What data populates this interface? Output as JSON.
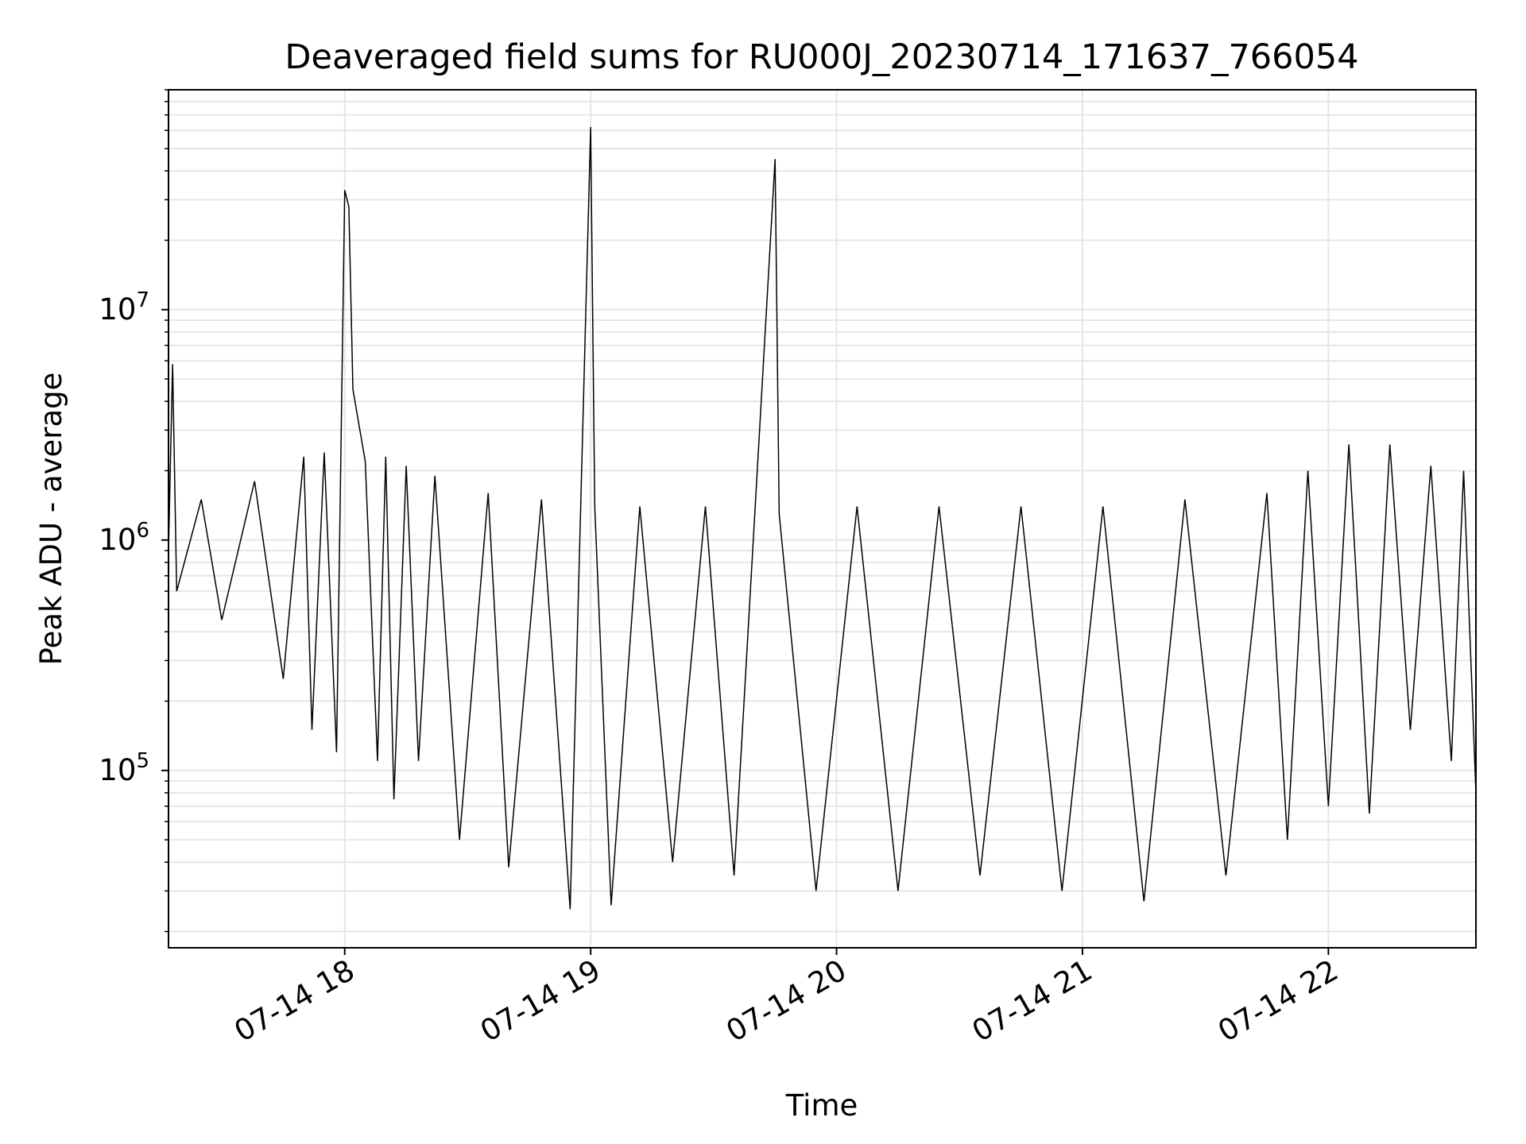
{
  "chart_data": {
    "type": "line",
    "title": "Deaveraged field sums for RU000J_20230714_171637_766054",
    "xlabel": "Time",
    "ylabel": "Peak ADU - average",
    "y_scale": "log",
    "ylim": [
      17000,
      90000000
    ],
    "xlim": [
      "2023-07-14 17:17",
      "2023-07-14 22:36"
    ],
    "x_ticks": [
      "2023-07-14 18:00",
      "2023-07-14 19:00",
      "2023-07-14 20:00",
      "2023-07-14 21:00",
      "2023-07-14 22:00"
    ],
    "x_tick_labels": [
      "07-14 18",
      "07-14 19",
      "07-14 20",
      "07-14 21",
      "07-14 22"
    ],
    "y_tick_labels": [
      {
        "value": 100000,
        "base": "10",
        "exponent": "5"
      },
      {
        "value": 1000000,
        "base": "10",
        "exponent": "6"
      },
      {
        "value": 10000000,
        "base": "10",
        "exponent": "7"
      }
    ],
    "grid": true,
    "line_color": "#000000",
    "grid_color": "#e6e6e6",
    "series": [
      {
        "points": [
          [
            "2023-07-14 17:17",
            900000
          ],
          [
            "2023-07-14 17:18",
            5800000
          ],
          [
            "2023-07-14 17:19",
            600000
          ],
          [
            "2023-07-14 17:25",
            1500000
          ],
          [
            "2023-07-14 17:30",
            450000
          ],
          [
            "2023-07-14 17:38",
            1800000
          ],
          [
            "2023-07-14 17:45",
            250000
          ],
          [
            "2023-07-14 17:50",
            2300000
          ],
          [
            "2023-07-14 17:52",
            150000
          ],
          [
            "2023-07-14 17:55",
            2400000
          ],
          [
            "2023-07-14 17:58",
            120000
          ],
          [
            "2023-07-14 18:00",
            33000000
          ],
          [
            "2023-07-14 18:01",
            28000000
          ],
          [
            "2023-07-14 18:02",
            4500000
          ],
          [
            "2023-07-14 18:05",
            2200000
          ],
          [
            "2023-07-14 18:08",
            110000
          ],
          [
            "2023-07-14 18:10",
            2300000
          ],
          [
            "2023-07-14 18:12",
            75000
          ],
          [
            "2023-07-14 18:15",
            2100000
          ],
          [
            "2023-07-14 18:18",
            110000
          ],
          [
            "2023-07-14 18:22",
            1900000
          ],
          [
            "2023-07-14 18:28",
            50000
          ],
          [
            "2023-07-14 18:35",
            1600000
          ],
          [
            "2023-07-14 18:40",
            38000
          ],
          [
            "2023-07-14 18:48",
            1500000
          ],
          [
            "2023-07-14 18:55",
            25000
          ],
          [
            "2023-07-14 19:00",
            62000000
          ],
          [
            "2023-07-14 19:01",
            1400000
          ],
          [
            "2023-07-14 19:05",
            26000
          ],
          [
            "2023-07-14 19:12",
            1400000
          ],
          [
            "2023-07-14 19:20",
            40000
          ],
          [
            "2023-07-14 19:28",
            1400000
          ],
          [
            "2023-07-14 19:35",
            35000
          ],
          [
            "2023-07-14 19:45",
            45000000
          ],
          [
            "2023-07-14 19:46",
            1300000
          ],
          [
            "2023-07-14 19:55",
            30000
          ],
          [
            "2023-07-14 20:05",
            1400000
          ],
          [
            "2023-07-14 20:15",
            30000
          ],
          [
            "2023-07-14 20:25",
            1400000
          ],
          [
            "2023-07-14 20:35",
            35000
          ],
          [
            "2023-07-14 20:45",
            1400000
          ],
          [
            "2023-07-14 20:55",
            30000
          ],
          [
            "2023-07-14 21:05",
            1400000
          ],
          [
            "2023-07-14 21:15",
            27000
          ],
          [
            "2023-07-14 21:25",
            1500000
          ],
          [
            "2023-07-14 21:35",
            35000
          ],
          [
            "2023-07-14 21:45",
            1600000
          ],
          [
            "2023-07-14 21:50",
            50000
          ],
          [
            "2023-07-14 21:55",
            2000000
          ],
          [
            "2023-07-14 22:00",
            70000
          ],
          [
            "2023-07-14 22:05",
            2600000
          ],
          [
            "2023-07-14 22:10",
            65000
          ],
          [
            "2023-07-14 22:15",
            2600000
          ],
          [
            "2023-07-14 22:20",
            150000
          ],
          [
            "2023-07-14 22:25",
            2100000
          ],
          [
            "2023-07-14 22:30",
            110000
          ],
          [
            "2023-07-14 22:33",
            2000000
          ],
          [
            "2023-07-14 22:36",
            80000
          ]
        ]
      }
    ]
  }
}
